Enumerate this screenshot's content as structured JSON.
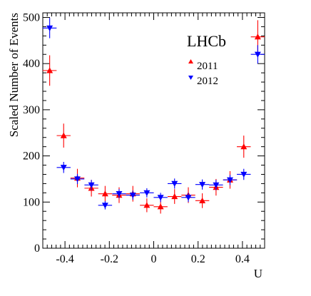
{
  "chart_data": {
    "type": "scatter",
    "xlabel": "U",
    "ylabel": "Scaled Number of Events",
    "annotation": "LHCb",
    "xlim": [
      -0.5,
      0.5
    ],
    "ylim": [
      0,
      510
    ],
    "x_ticks": [
      -0.4,
      -0.2,
      0,
      0.2,
      0.4
    ],
    "x_tick_labels": [
      "-0.4",
      "-0.2",
      "0",
      "0.2",
      "0.4"
    ],
    "y_ticks": [
      0,
      100,
      200,
      300,
      400,
      500
    ],
    "y_tick_labels": [
      "0",
      "100",
      "200",
      "300",
      "400",
      "500"
    ],
    "bin_half_width": 0.03125,
    "legend_placement": "top-right",
    "series": [
      {
        "name": "2011",
        "marker": "triangle-up",
        "color": "#ff0000",
        "points": [
          {
            "x": -0.469,
            "y": 385,
            "err": 33
          },
          {
            "x": -0.406,
            "y": 244,
            "err": 26
          },
          {
            "x": -0.344,
            "y": 152,
            "err": 20
          },
          {
            "x": -0.281,
            "y": 130,
            "err": 18
          },
          {
            "x": -0.219,
            "y": 118,
            "err": 17
          },
          {
            "x": -0.156,
            "y": 115,
            "err": 17
          },
          {
            "x": -0.094,
            "y": 118,
            "err": 17
          },
          {
            "x": -0.031,
            "y": 93,
            "err": 15
          },
          {
            "x": 0.031,
            "y": 90,
            "err": 15
          },
          {
            "x": 0.094,
            "y": 112,
            "err": 16
          },
          {
            "x": 0.156,
            "y": 115,
            "err": 17
          },
          {
            "x": 0.219,
            "y": 103,
            "err": 16
          },
          {
            "x": 0.281,
            "y": 132,
            "err": 18
          },
          {
            "x": 0.344,
            "y": 148,
            "err": 19
          },
          {
            "x": 0.406,
            "y": 220,
            "err": 24
          },
          {
            "x": 0.469,
            "y": 458,
            "err": 36
          }
        ]
      },
      {
        "name": "2012",
        "marker": "triangle-down",
        "color": "#0000ff",
        "points": [
          {
            "x": -0.469,
            "y": 477,
            "err": 22
          },
          {
            "x": -0.406,
            "y": 175,
            "err": 12
          },
          {
            "x": -0.344,
            "y": 150,
            "err": 11
          },
          {
            "x": -0.281,
            "y": 137,
            "err": 11
          },
          {
            "x": -0.219,
            "y": 93,
            "err": 9
          },
          {
            "x": -0.156,
            "y": 118,
            "err": 10
          },
          {
            "x": -0.094,
            "y": 115,
            "err": 10
          },
          {
            "x": -0.031,
            "y": 120,
            "err": 10
          },
          {
            "x": 0.031,
            "y": 110,
            "err": 10
          },
          {
            "x": 0.094,
            "y": 140,
            "err": 11
          },
          {
            "x": 0.156,
            "y": 110,
            "err": 10
          },
          {
            "x": 0.219,
            "y": 138,
            "err": 11
          },
          {
            "x": 0.281,
            "y": 137,
            "err": 11
          },
          {
            "x": 0.344,
            "y": 148,
            "err": 11
          },
          {
            "x": 0.406,
            "y": 160,
            "err": 12
          },
          {
            "x": 0.469,
            "y": 420,
            "err": 20
          }
        ]
      }
    ]
  }
}
